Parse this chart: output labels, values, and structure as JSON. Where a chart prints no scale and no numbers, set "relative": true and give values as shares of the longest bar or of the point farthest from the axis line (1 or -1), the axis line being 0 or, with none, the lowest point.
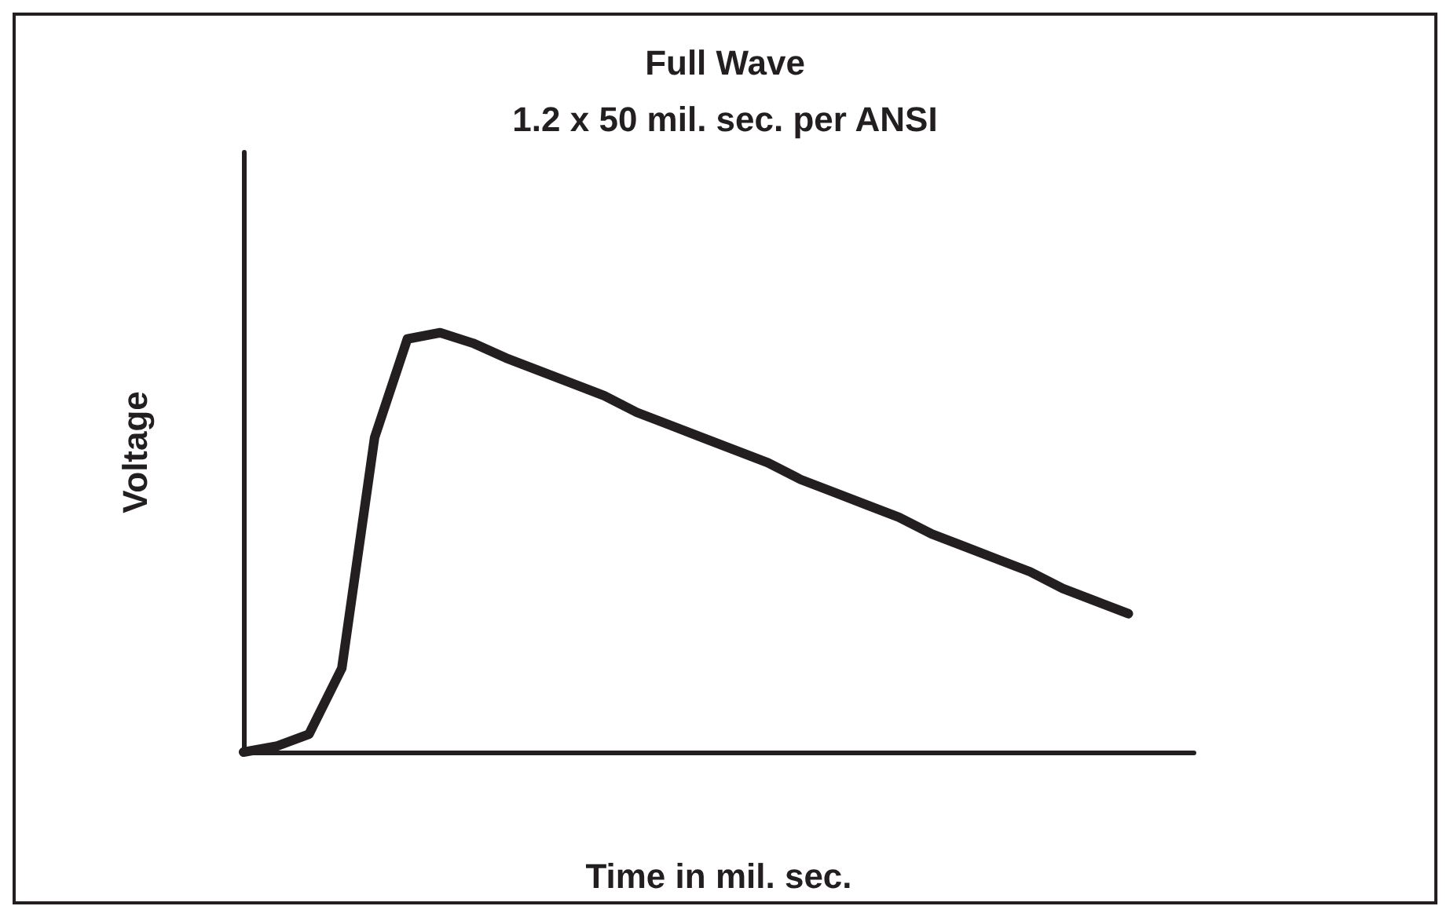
{
  "chart_data": {
    "type": "line",
    "title": "Full Wave",
    "subtitle": "1.2 x 50 mil. sec. per ANSI",
    "xlabel": "Time in mil. sec.",
    "ylabel": "Voltage",
    "relative": true,
    "categories": [
      null,
      null,
      null,
      null,
      null,
      null,
      null,
      null,
      null,
      null,
      null,
      null,
      null,
      null,
      null,
      null,
      null,
      null,
      null,
      null,
      null,
      null,
      null,
      null,
      null,
      null,
      null,
      null,
      null,
      null
    ],
    "series": [
      {
        "color": "#231f20",
        "values": [
          0,
          0.014,
          0.043,
          0.2,
          0.75,
          0.985,
          1,
          0.975,
          0.94,
          0.91,
          0.88,
          0.85,
          0.81,
          0.78,
          0.75,
          0.72,
          0.69,
          0.65,
          0.62,
          0.59,
          0.56,
          0.52,
          0.49,
          0.46,
          0.43,
          0.39,
          0.36,
          0.33,
          null,
          null
        ]
      }
    ],
    "grid": false,
    "tick_labels": false,
    "marker": "none",
    "line_style": "solid"
  }
}
